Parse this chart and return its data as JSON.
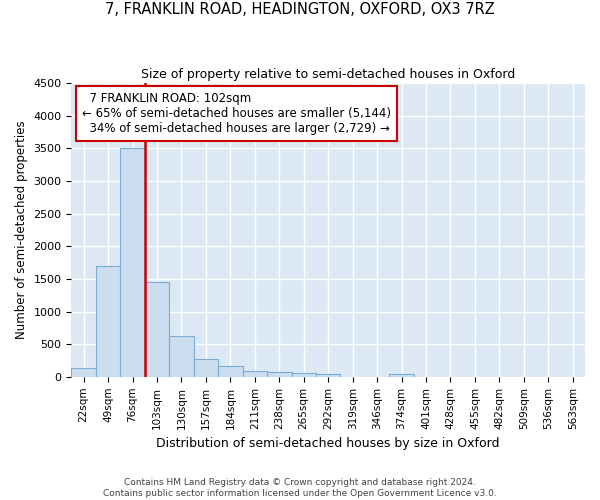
{
  "title": "7, FRANKLIN ROAD, HEADINGTON, OXFORD, OX3 7RZ",
  "subtitle": "Size of property relative to semi-detached houses in Oxford",
  "xlabel": "Distribution of semi-detached houses by size in Oxford",
  "ylabel": "Number of semi-detached properties",
  "categories": [
    "22sqm",
    "49sqm",
    "76sqm",
    "103sqm",
    "130sqm",
    "157sqm",
    "184sqm",
    "211sqm",
    "238sqm",
    "265sqm",
    "292sqm",
    "319sqm",
    "346sqm",
    "374sqm",
    "401sqm",
    "428sqm",
    "455sqm",
    "482sqm",
    "509sqm",
    "536sqm",
    "563sqm"
  ],
  "values": [
    130,
    1700,
    3500,
    1450,
    620,
    275,
    160,
    90,
    80,
    55,
    40,
    0,
    0,
    50,
    0,
    0,
    0,
    0,
    0,
    0,
    0
  ],
  "bar_color": "#ccddf0",
  "bar_edge_color": "#7aadd4",
  "pct_smaller": 65,
  "count_smaller": 5144,
  "pct_larger": 34,
  "count_larger": 2729,
  "annotation_label": "7 FRANKLIN ROAD: 102sqm",
  "line_color": "#cc0000",
  "annotation_box_color": "#ffffff",
  "annotation_box_edge": "#cc0000",
  "ylim": [
    0,
    4500
  ],
  "yticks": [
    0,
    500,
    1000,
    1500,
    2000,
    2500,
    3000,
    3500,
    4000,
    4500
  ],
  "bg_color": "#dce9f5",
  "grid_color": "#ffffff",
  "footer_line1": "Contains HM Land Registry data © Crown copyright and database right 2024.",
  "footer_line2": "Contains public sector information licensed under the Open Government Licence v3.0."
}
